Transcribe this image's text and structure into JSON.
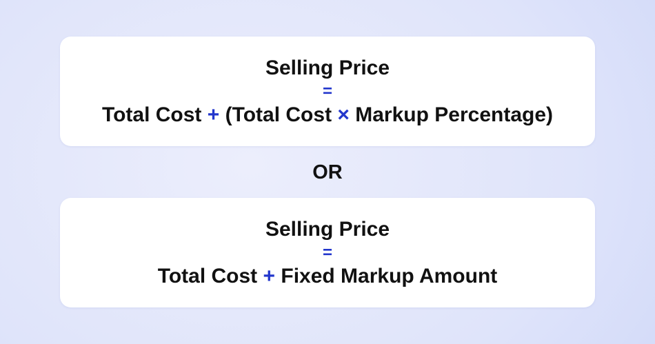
{
  "colors": {
    "accent-blue": "#2236cc",
    "text": "#111111",
    "card-bg": "#ffffff",
    "bg-center": "#eceefc",
    "bg-mid": "#dfe4fa",
    "bg-edge": "#ccd5f8"
  },
  "or_label": "OR",
  "formulas": [
    {
      "result": "Selling Price",
      "equals": "=",
      "parts": [
        {
          "text": "Total Cost ",
          "style": "text"
        },
        {
          "text": "+",
          "style": "accent"
        },
        {
          "text": " (Total Cost ",
          "style": "text"
        },
        {
          "text": "×",
          "style": "accent"
        },
        {
          "text": " Markup Percentage)",
          "style": "text"
        }
      ]
    },
    {
      "result": "Selling Price",
      "equals": "=",
      "parts": [
        {
          "text": "Total Cost ",
          "style": "text"
        },
        {
          "text": "+",
          "style": "accent"
        },
        {
          "text": " Fixed Markup Amount",
          "style": "text"
        }
      ]
    }
  ]
}
